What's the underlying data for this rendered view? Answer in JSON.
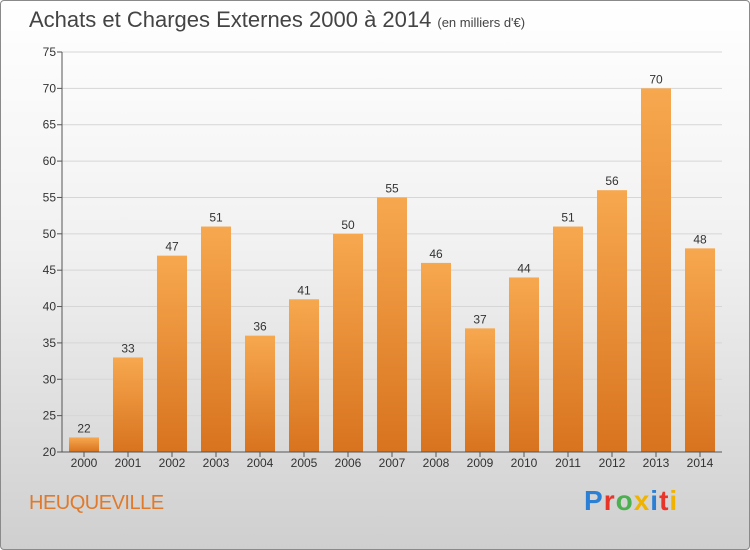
{
  "title": "Achats et Charges Externes 2000 à 2014",
  "subtitle": "(en milliers d'€)",
  "commune": "HEUQUEVILLE",
  "logo": "Proxiti",
  "colors": {
    "bar_light": "#f7a84f",
    "bar_dark": "#d8731f",
    "commune": "#e07a2a",
    "logo_letters": [
      "#2b7fd4",
      "#e8352a",
      "#4caf50",
      "#f0b400",
      "#2b7fd4",
      "#e8352a",
      "#f0b400"
    ]
  },
  "chart_data": {
    "type": "bar",
    "title": "Achats et Charges Externes 2000 à 2014",
    "subtitle": "(en milliers d'€)",
    "categories": [
      "2000",
      "2001",
      "2002",
      "2003",
      "2004",
      "2005",
      "2006",
      "2007",
      "2008",
      "2009",
      "2010",
      "2011",
      "2012",
      "2013",
      "2014"
    ],
    "values": [
      22,
      33,
      47,
      51,
      36,
      41,
      50,
      55,
      46,
      37,
      44,
      51,
      56,
      70,
      48
    ],
    "ylim": [
      20,
      75
    ],
    "yticks": [
      20,
      25,
      30,
      35,
      40,
      45,
      50,
      55,
      60,
      65,
      70,
      75
    ],
    "grid": true
  }
}
